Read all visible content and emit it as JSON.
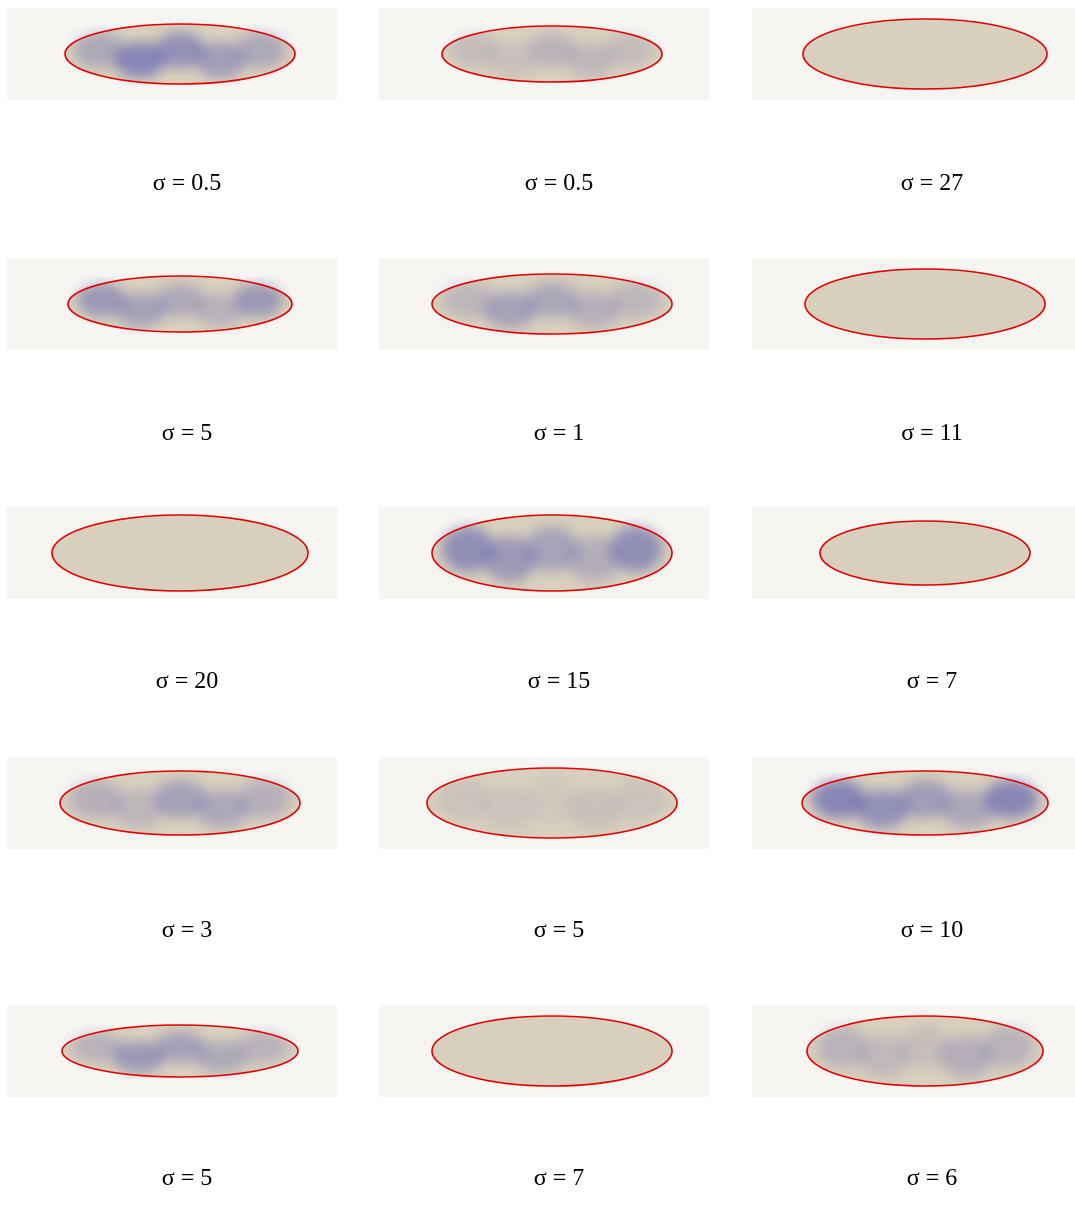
{
  "panels": [
    {
      "label": "σ = 0.5"
    },
    {
      "label": "σ = 0.5"
    },
    {
      "label": "σ = 27"
    },
    {
      "label": "σ = 5"
    },
    {
      "label": "σ = 1"
    },
    {
      "label": "σ = 11"
    },
    {
      "label": "σ = 20"
    },
    {
      "label": "σ = 15"
    },
    {
      "label": "σ = 7"
    },
    {
      "label": "σ = 3"
    },
    {
      "label": "σ = 5"
    },
    {
      "label": "σ = 10"
    },
    {
      "label": "σ = 5"
    },
    {
      "label": "σ = 7"
    },
    {
      "label": "σ = 6"
    }
  ]
}
